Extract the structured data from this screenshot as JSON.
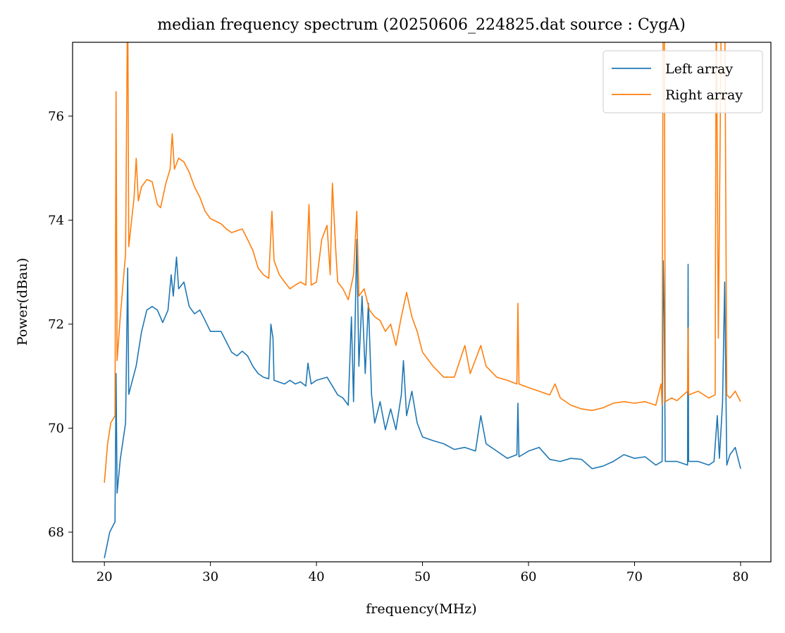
{
  "chart_data": {
    "type": "line",
    "title": "median frequency spectrum (20250606_224825.dat source : CygA)",
    "xlabel": "frequency(MHz)",
    "ylabel": "Power(dBau)",
    "xlim": [
      17.0,
      82.86
    ],
    "ylim": [
      67.43,
      77.42
    ],
    "xticks": [
      20,
      30,
      40,
      50,
      60,
      70,
      80
    ],
    "yticks": [
      68,
      70,
      72,
      74,
      76
    ],
    "grid": false,
    "legend_position": "top-right",
    "colors": {
      "Left array": "#1f77b4",
      "Right array": "#ff7f0e"
    },
    "series": [
      {
        "name": "Left array",
        "x": [
          20.0,
          20.5,
          21.0,
          21.1,
          21.2,
          21.5,
          22.0,
          22.2,
          22.3,
          23,
          23.5,
          24,
          24.5,
          25,
          25.5,
          26,
          26.3,
          26.5,
          26.8,
          27,
          27.5,
          28,
          28.5,
          29,
          29.5,
          30,
          31,
          31.5,
          32,
          32.5,
          33,
          33.5,
          34,
          34.5,
          35,
          35.5,
          35.7,
          35.9,
          36,
          37,
          37.5,
          38,
          38.5,
          39,
          39.2,
          39.5,
          40,
          41,
          41.5,
          42,
          42.5,
          43,
          43.3,
          43.5,
          43.8,
          44,
          44.3,
          44.6,
          44.9,
          45.2,
          45.5,
          46,
          46.5,
          47,
          47.5,
          48,
          48.2,
          48.5,
          49,
          49.5,
          50,
          51,
          52,
          53,
          54,
          55,
          55.5,
          56,
          57,
          58,
          58.9,
          59,
          59.1,
          60,
          61,
          62,
          63,
          64,
          65,
          66,
          67,
          68,
          69,
          70,
          71,
          72,
          72.6,
          72.7,
          72.8,
          72.9,
          74,
          75,
          75.05,
          75.1,
          76,
          77,
          77.5,
          77.8,
          78,
          78.3,
          78.5,
          78.7,
          79,
          79.5,
          80
        ],
        "y": [
          67.5,
          68.0,
          68.2,
          71.05,
          68.75,
          69.4,
          70.1,
          73.08,
          70.65,
          71.2,
          71.85,
          72.27,
          72.34,
          72.27,
          72.03,
          72.27,
          72.95,
          72.54,
          73.29,
          72.68,
          72.81,
          72.34,
          72.2,
          72.27,
          72.07,
          71.86,
          71.86,
          71.66,
          71.46,
          71.39,
          71.48,
          71.39,
          71.19,
          71.05,
          70.98,
          70.95,
          72.0,
          71.73,
          70.92,
          70.85,
          70.92,
          70.85,
          70.89,
          70.81,
          71.25,
          70.85,
          70.92,
          70.98,
          70.81,
          70.64,
          70.58,
          70.44,
          72.14,
          70.51,
          73.63,
          71.19,
          72.54,
          71.05,
          72.4,
          70.64,
          70.1,
          70.51,
          69.97,
          70.37,
          69.97,
          70.64,
          71.3,
          70.24,
          70.71,
          70.1,
          69.83,
          69.76,
          69.7,
          69.59,
          69.63,
          69.56,
          70.24,
          69.7,
          69.56,
          69.42,
          69.49,
          70.48,
          69.45,
          69.56,
          69.63,
          69.4,
          69.36,
          69.42,
          69.4,
          69.22,
          69.27,
          69.36,
          69.49,
          69.42,
          69.45,
          69.29,
          69.36,
          73.22,
          72.14,
          69.36,
          69.36,
          69.29,
          73.15,
          69.36,
          69.36,
          69.29,
          69.36,
          70.24,
          69.42,
          70.5,
          72.81,
          69.29,
          69.49,
          69.63,
          69.22
        ]
      },
      {
        "name": "Right array",
        "x": [
          20.0,
          20.3,
          20.6,
          21.0,
          21.1,
          21.2,
          21.5,
          22,
          22.2,
          22.3,
          22.8,
          23,
          23.2,
          23.5,
          24,
          24.5,
          25,
          25.3,
          25.8,
          26.2,
          26.4,
          26.6,
          27,
          27.5,
          28,
          28.5,
          29,
          29.5,
          30,
          31,
          31.5,
          32,
          33,
          33.5,
          34,
          34.5,
          35,
          35.5,
          35.8,
          36,
          36.5,
          37,
          37.5,
          38,
          38.5,
          39,
          39.3,
          39.5,
          40,
          40.5,
          41,
          41.3,
          41.5,
          41.8,
          42,
          42.5,
          43,
          43.5,
          43.8,
          44,
          44.5,
          45,
          45.5,
          46,
          46.5,
          47,
          47.5,
          48,
          48.5,
          49,
          49.5,
          50,
          51,
          52,
          53,
          54,
          54.5,
          55,
          55.5,
          56,
          57,
          58,
          58.9,
          59,
          59.1,
          60,
          61,
          62,
          62.5,
          63,
          64,
          65,
          66,
          67,
          68,
          69,
          70,
          71,
          72,
          72.5,
          72.6,
          72.7,
          72.8,
          72.9,
          73.5,
          74,
          75,
          75.05,
          75.1,
          76,
          77,
          77.6,
          77.7,
          77.9,
          78.2,
          78.5,
          78.7,
          79,
          79.5,
          80
        ],
        "y": [
          68.95,
          69.7,
          70.1,
          70.24,
          76.47,
          71.3,
          72.14,
          73.36,
          78.5,
          73.49,
          74.44,
          75.19,
          74.37,
          74.64,
          74.78,
          74.74,
          74.3,
          74.24,
          74.71,
          74.98,
          75.66,
          74.98,
          75.19,
          75.12,
          74.92,
          74.64,
          74.44,
          74.17,
          74.03,
          73.93,
          73.83,
          73.76,
          73.83,
          73.63,
          73.42,
          73.08,
          72.95,
          72.88,
          74.17,
          73.22,
          72.95,
          72.81,
          72.68,
          72.75,
          72.81,
          72.75,
          74.3,
          72.75,
          72.81,
          73.63,
          73.9,
          72.95,
          74.71,
          73.49,
          72.81,
          72.68,
          72.47,
          72.95,
          74.17,
          72.54,
          72.68,
          72.27,
          72.14,
          72.07,
          71.86,
          72.0,
          71.59,
          72.14,
          72.61,
          72.14,
          71.86,
          71.46,
          71.19,
          70.98,
          70.98,
          71.59,
          71.05,
          71.32,
          71.59,
          71.19,
          70.98,
          70.92,
          70.85,
          72.4,
          70.85,
          70.78,
          70.71,
          70.64,
          70.85,
          70.58,
          70.44,
          70.37,
          70.34,
          70.39,
          70.48,
          70.51,
          70.48,
          70.51,
          70.44,
          70.85,
          70.44,
          78.5,
          78.5,
          70.51,
          70.58,
          70.53,
          70.71,
          71.93,
          70.64,
          70.71,
          70.58,
          70.64,
          78.5,
          71.73,
          78.5,
          78.5,
          70.64,
          70.58,
          70.71,
          70.51
        ]
      }
    ]
  }
}
